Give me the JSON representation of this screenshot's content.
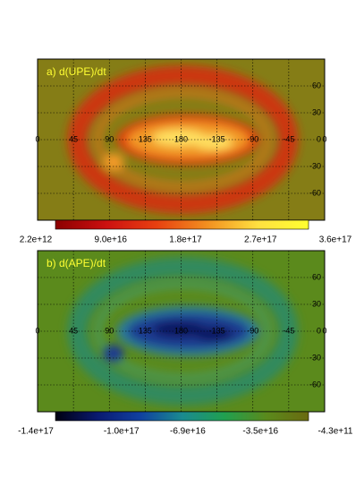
{
  "chart_data": [
    {
      "type": "heatmap",
      "title": "a) d(UPE)/dt",
      "background": "#857d16",
      "colormap": [
        "#8b0000",
        "#cc1010",
        "#e84010",
        "#f29020",
        "#ffe040",
        "#ffff30"
      ],
      "xlim": [
        0,
        360
      ],
      "xticks": [
        0,
        45,
        90,
        135,
        180,
        {
          "value": 225,
          "label": "-135"
        },
        {
          "value": 270,
          "label": "-90"
        },
        {
          "value": 315,
          "label": "-45"
        },
        {
          "value": 360,
          "label": "0"
        }
      ],
      "ylim": [
        -90,
        90
      ],
      "yticks": [
        60,
        30,
        0,
        -30,
        -60
      ],
      "clim": [
        2200000000000.0,
        3.6e+17
      ],
      "cticks": [
        {
          "value": 2200000000000.0,
          "label": "2.2e+12"
        },
        {
          "value": 9e+16,
          "label": "9.0e+16"
        },
        {
          "value": 1.8e+17,
          "label": "1.8e+17"
        },
        {
          "value": 2.7e+17,
          "label": "2.7e+17"
        },
        {
          "value": 3.6e+17,
          "label": "3.6e+17"
        }
      ],
      "grid": true
    },
    {
      "type": "heatmap",
      "title": "b) d(APE)/dt",
      "background": "#5b8a1c",
      "colormap": [
        "#000010",
        "#0a1a70",
        "#1040a0",
        "#1a8a90",
        "#20a050",
        "#5a8a1c",
        "#6a6a10"
      ],
      "xlim": [
        0,
        360
      ],
      "xticks": [
        0,
        45,
        90,
        135,
        180,
        {
          "value": 225,
          "label": "-135"
        },
        {
          "value": 270,
          "label": "-90"
        },
        {
          "value": 315,
          "label": "-45"
        },
        {
          "value": 360,
          "label": "0"
        }
      ],
      "ylim": [
        -90,
        90
      ],
      "yticks": [
        60,
        30,
        0,
        -30,
        -60
      ],
      "clim": [
        -1.4e+17,
        -430000000000.0
      ],
      "cticks": [
        {
          "value": -1.4e+17,
          "label": "-1.4e+17"
        },
        {
          "value": -1e+17,
          "label": "-1.0e+17"
        },
        {
          "value": -6.9e+16,
          "label": "-6.9e+16"
        },
        {
          "value": -3.5e+16,
          "label": "-3.5e+16"
        },
        {
          "value": -430000000000.0,
          "label": "-4.3e+11"
        }
      ],
      "grid": true
    }
  ]
}
